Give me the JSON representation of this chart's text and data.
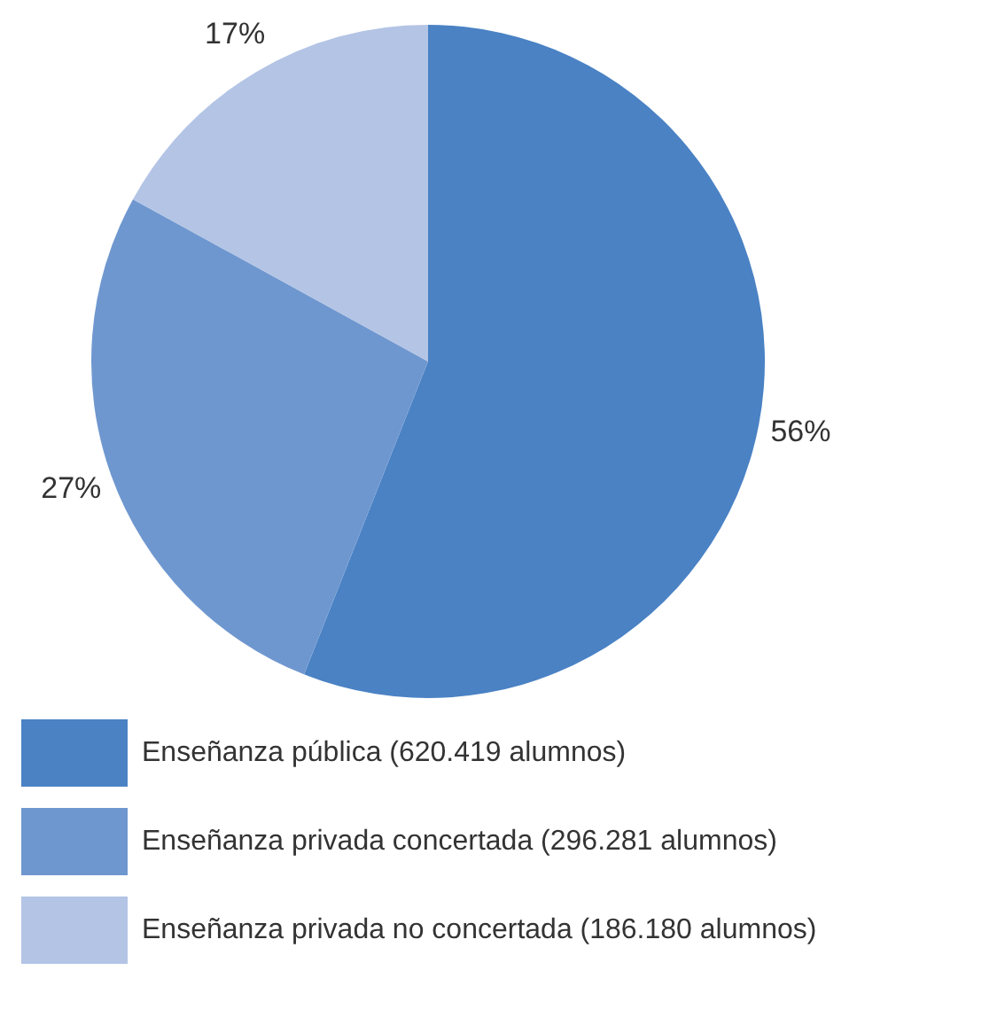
{
  "chart_data": {
    "type": "pie",
    "categories": [
      "Enseñanza pública (620.419 alumnos)",
      "Enseñanza privada concertada (296.281 alumnos)",
      "Enseñanza privada no concertada (186.180 alumnos)"
    ],
    "values": [
      56,
      27,
      17
    ],
    "value_labels": [
      "56%",
      "27%",
      "17%"
    ],
    "colors": [
      "#4a82c4",
      "#6f97cf",
      "#b3c4e5"
    ],
    "legend": "bottom"
  }
}
